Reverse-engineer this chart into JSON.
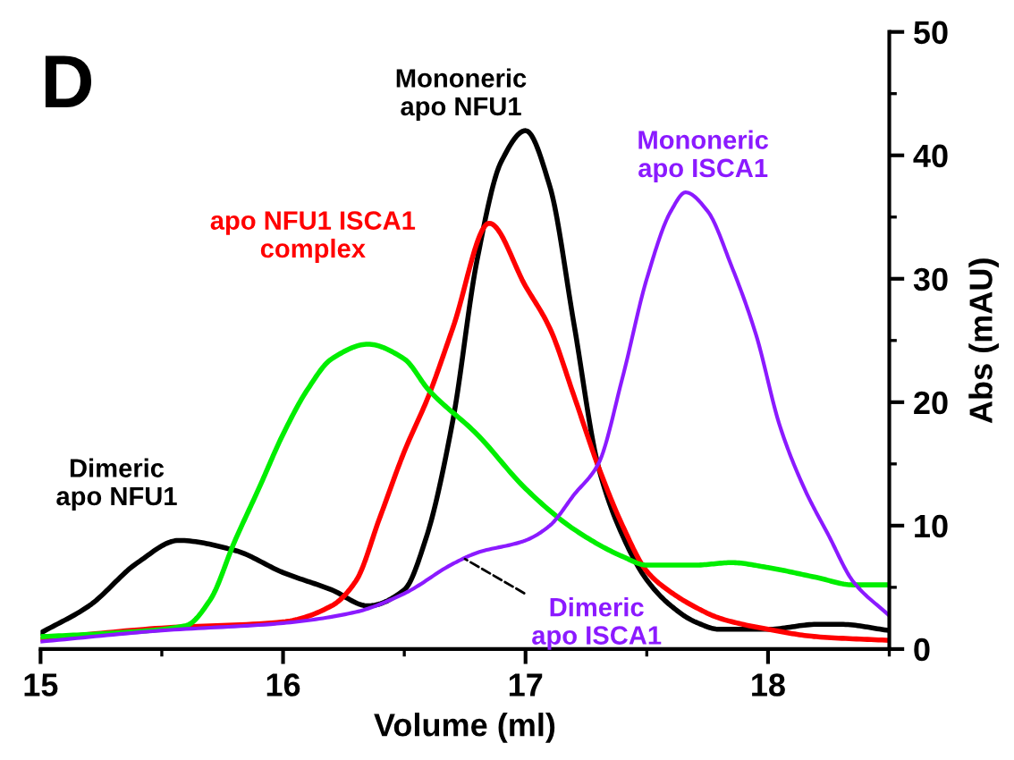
{
  "chart_data": {
    "type": "line",
    "xlabel": "Volume (ml)",
    "ylabel": "Abs (mAU)",
    "xlim": [
      15,
      18.5
    ],
    "xticks": [
      15,
      16,
      17,
      18
    ],
    "ylim": [
      0,
      50
    ],
    "yticks": [
      0,
      10,
      20,
      30,
      40,
      50
    ],
    "grid": false,
    "legend": false,
    "marker": "none",
    "line_style": "solid",
    "series": [
      {
        "color": "#000000",
        "x": [
          15.0,
          15.2,
          15.4,
          15.57,
          15.8,
          16.0,
          16.2,
          16.35,
          16.5,
          16.59,
          16.7,
          16.8,
          16.9,
          17.0,
          17.1,
          17.2,
          17.3,
          17.4,
          17.5,
          17.6,
          17.7,
          17.8,
          18.0,
          18.2,
          18.3,
          18.5
        ],
        "values": [
          1.3,
          3.5,
          7.0,
          8.8,
          8.0,
          6.2,
          4.8,
          3.5,
          4.8,
          9.0,
          18.5,
          31.5,
          39.5,
          42.0,
          37.5,
          26.3,
          14.8,
          9.2,
          5.6,
          3.5,
          2.2,
          1.6,
          1.6,
          2.0,
          2.0,
          1.5
        ]
      },
      {
        "color": "#ff0000",
        "x": [
          15.0,
          15.5,
          16.0,
          16.2,
          16.3,
          16.4,
          16.5,
          16.6,
          16.7,
          16.85,
          17.0,
          17.1,
          17.2,
          17.3,
          17.4,
          17.5,
          17.6,
          17.7,
          17.8,
          18.0,
          18.2,
          18.5
        ],
        "values": [
          0.8,
          1.7,
          2.2,
          3.5,
          5.5,
          10.7,
          16.0,
          20.5,
          26.0,
          34.5,
          29.4,
          26.0,
          20.5,
          14.8,
          10.0,
          6.3,
          4.6,
          3.4,
          2.5,
          1.6,
          1.0,
          0.7
        ]
      },
      {
        "color": "#00ee00",
        "x": [
          15.0,
          15.3,
          15.6,
          15.7,
          15.8,
          15.9,
          16.0,
          16.1,
          16.2,
          16.35,
          16.5,
          16.6,
          16.8,
          17.0,
          17.2,
          17.4,
          17.5,
          17.7,
          17.85,
          18.0,
          18.2,
          18.35,
          18.5
        ],
        "values": [
          1.0,
          1.3,
          1.9,
          4.0,
          8.7,
          13.0,
          17.4,
          21.0,
          23.5,
          24.7,
          23.5,
          21.0,
          17.4,
          13.0,
          9.7,
          7.5,
          6.8,
          6.8,
          7.0,
          6.6,
          5.8,
          5.2,
          5.2
        ]
      },
      {
        "color": "#8b1aff",
        "x": [
          15.0,
          15.5,
          16.0,
          16.3,
          16.5,
          16.7,
          16.8,
          17.0,
          17.1,
          17.2,
          17.3,
          17.4,
          17.5,
          17.6,
          17.66,
          17.75,
          17.85,
          17.95,
          18.05,
          18.15,
          18.25,
          18.35,
          18.5
        ],
        "values": [
          0.6,
          1.5,
          2.1,
          3.0,
          4.5,
          6.9,
          7.8,
          8.8,
          10.0,
          12.5,
          15.0,
          22.0,
          30.0,
          35.5,
          37.0,
          35.5,
          31.0,
          25.5,
          18.0,
          13.0,
          9.2,
          5.5,
          2.7
        ]
      }
    ],
    "annotations": [
      "D",
      {
        "text": "Dimeric\napo NFU1",
        "x": 15.57,
        "y": 8.8
      },
      {
        "text": "Mononeric\napo NFU1",
        "x": 17.0,
        "y": 42.0
      },
      {
        "text": "apo NFU1 ISCA1\ncomplex",
        "x": 16.85,
        "y": 34.5
      },
      {
        "text": "Mononeric\napo ISCA1",
        "x": 17.66,
        "y": 37.0
      },
      {
        "text": "Dimeric\napo ISCA1",
        "x": 16.75,
        "y": 7.3
      }
    ]
  }
}
